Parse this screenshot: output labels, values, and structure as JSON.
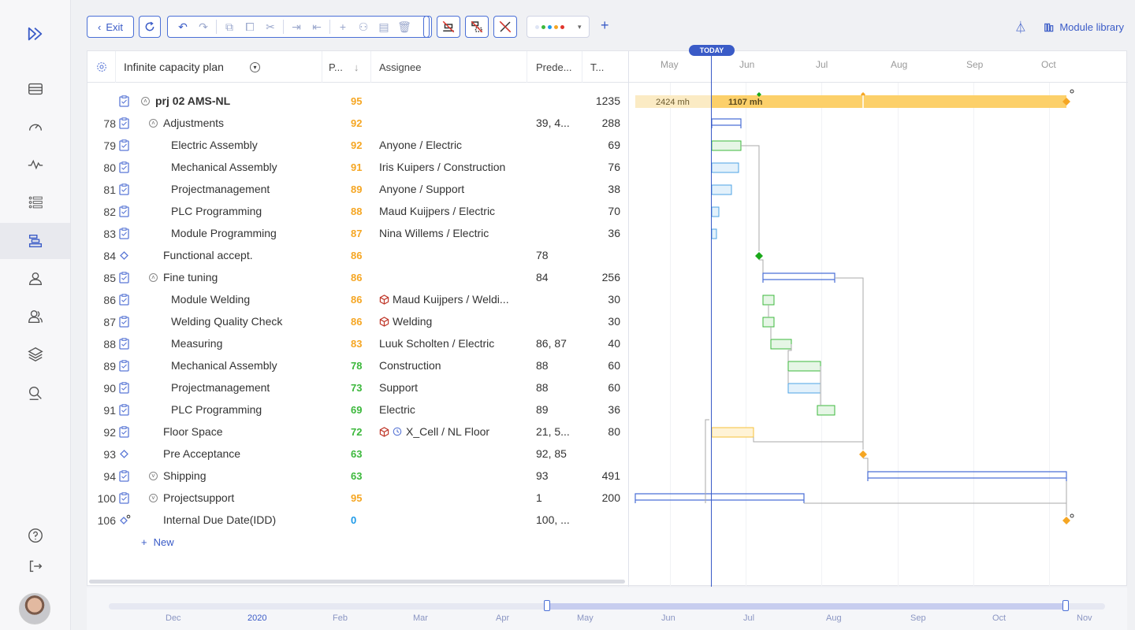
{
  "toolbar": {
    "exit_label": "Exit",
    "right_action_label": "Module library"
  },
  "grid": {
    "header": {
      "plan_name": "Infinite capacity plan",
      "priority": "P...",
      "assignee": "Assignee",
      "predecessors": "Prede...",
      "total": "T..."
    },
    "rows": [
      {
        "num": "",
        "icon": "clipboard",
        "toggle": "up",
        "indent": 0,
        "name": "prj 02 AMS-NL",
        "bold": true,
        "prio": "95",
        "prio_color": "orange",
        "assignee": "",
        "pred": "",
        "total": "1235"
      },
      {
        "num": "78",
        "icon": "clipboard",
        "toggle": "up",
        "indent": 1,
        "name": "Adjustments",
        "prio": "92",
        "prio_color": "orange",
        "assignee": "",
        "pred": "39, 4...",
        "total": "288"
      },
      {
        "num": "79",
        "icon": "clipboard",
        "indent": 2,
        "name": "Electric Assembly",
        "prio": "92",
        "prio_color": "orange",
        "assignee": "Anyone / Electric",
        "pred": "",
        "total": "69"
      },
      {
        "num": "80",
        "icon": "clipboard",
        "indent": 2,
        "name": "Mechanical Assembly",
        "prio": "91",
        "prio_color": "orange",
        "assignee": "Iris Kuipers / Construction",
        "pred": "",
        "total": "76"
      },
      {
        "num": "81",
        "icon": "clipboard",
        "indent": 2,
        "name": "Projectmanagement",
        "prio": "89",
        "prio_color": "orange",
        "assignee": "Anyone / Support",
        "pred": "",
        "total": "38"
      },
      {
        "num": "82",
        "icon": "clipboard",
        "indent": 2,
        "name": "PLC Programming",
        "prio": "88",
        "prio_color": "orange",
        "assignee": "Maud Kuijpers / Electric",
        "pred": "",
        "total": "70"
      },
      {
        "num": "83",
        "icon": "clipboard",
        "indent": 2,
        "name": "Module Programming",
        "prio": "87",
        "prio_color": "orange",
        "assignee": "Nina Willems / Electric",
        "pred": "",
        "total": "36"
      },
      {
        "num": "84",
        "icon": "diamond",
        "indent": 1,
        "name": "Functional accept.",
        "prio": "86",
        "prio_color": "orange",
        "assignee": "",
        "pred": "78",
        "total": ""
      },
      {
        "num": "85",
        "icon": "clipboard",
        "toggle": "up",
        "indent": 1,
        "name": "Fine tuning",
        "prio": "86",
        "prio_color": "orange",
        "assignee": "",
        "pred": "84",
        "total": "256"
      },
      {
        "num": "86",
        "icon": "clipboard",
        "indent": 2,
        "name": "Module Welding",
        "prio": "86",
        "prio_color": "orange",
        "assignee": "Maud Kuijpers / Weldi...",
        "assignee_cube": true,
        "pred": "",
        "total": "30"
      },
      {
        "num": "87",
        "icon": "clipboard",
        "indent": 2,
        "name": "Welding Quality Check",
        "prio": "86",
        "prio_color": "orange",
        "assignee": "Welding",
        "assignee_cube": true,
        "pred": "",
        "total": "30"
      },
      {
        "num": "88",
        "icon": "clipboard",
        "indent": 2,
        "name": "Measuring",
        "prio": "83",
        "prio_color": "orange",
        "assignee": "Luuk Scholten / Electric",
        "pred": "86, 87",
        "total": "40"
      },
      {
        "num": "89",
        "icon": "clipboard",
        "indent": 2,
        "name": "Mechanical Assembly",
        "prio": "78",
        "prio_color": "green",
        "assignee": "Construction",
        "pred": "88",
        "total": "60"
      },
      {
        "num": "90",
        "icon": "clipboard",
        "indent": 2,
        "name": "Projectmanagement",
        "prio": "73",
        "prio_color": "green",
        "assignee": "Support",
        "pred": "88",
        "total": "60"
      },
      {
        "num": "91",
        "icon": "clipboard",
        "indent": 2,
        "name": "PLC Programming",
        "prio": "69",
        "prio_color": "green",
        "assignee": "Electric",
        "pred": "89",
        "total": "36"
      },
      {
        "num": "92",
        "icon": "clipboard",
        "indent": 1,
        "name": "Floor Space",
        "prio": "72",
        "prio_color": "green",
        "assignee": "X_Cell / NL Floor",
        "assignee_cube": true,
        "assignee_clock": true,
        "pred": "21, 5...",
        "total": "80"
      },
      {
        "num": "93",
        "icon": "diamond",
        "indent": 1,
        "name": "Pre Acceptance",
        "prio": "63",
        "prio_color": "green",
        "assignee": "",
        "pred": "92, 85",
        "total": ""
      },
      {
        "num": "94",
        "icon": "clipboard",
        "toggle": "down",
        "indent": 1,
        "name": "Shipping",
        "prio": "63",
        "prio_color": "green",
        "assignee": "",
        "pred": "93",
        "total": "491"
      },
      {
        "num": "100",
        "icon": "clipboard",
        "toggle": "down",
        "indent": 1,
        "name": "Projectsupport",
        "prio": "95",
        "prio_color": "orange",
        "assignee": "",
        "pred": "1",
        "total": "200"
      },
      {
        "num": "106",
        "icon": "diamond-pin",
        "indent": 1,
        "name": "Internal Due Date(IDD)",
        "prio": "0",
        "prio_color": "blue",
        "assignee": "",
        "pred": "100, ...",
        "total": ""
      }
    ],
    "new_label": "New"
  },
  "timeline": {
    "today_label": "TODAY",
    "months": [
      "May",
      "Jun",
      "Jul",
      "Aug",
      "Sep",
      "Oct"
    ],
    "summary_bar": {
      "past_label": "2424 mh",
      "future_label": "1107 mh"
    }
  },
  "overview": {
    "months": [
      "Dec",
      "2020",
      "Feb",
      "Mar",
      "Apr",
      "May",
      "Jun",
      "Jul",
      "Aug",
      "Sep",
      "Oct",
      "Nov"
    ]
  },
  "colors": {
    "accent": "#3a5bc7",
    "prio_orange": "#f5a623",
    "prio_green": "#3cb83c",
    "prio_blue": "#1e9ae8",
    "bar_green": "#3cb83c",
    "bar_blue": "#4da3e6",
    "summary_bar": "#fcd06a"
  }
}
